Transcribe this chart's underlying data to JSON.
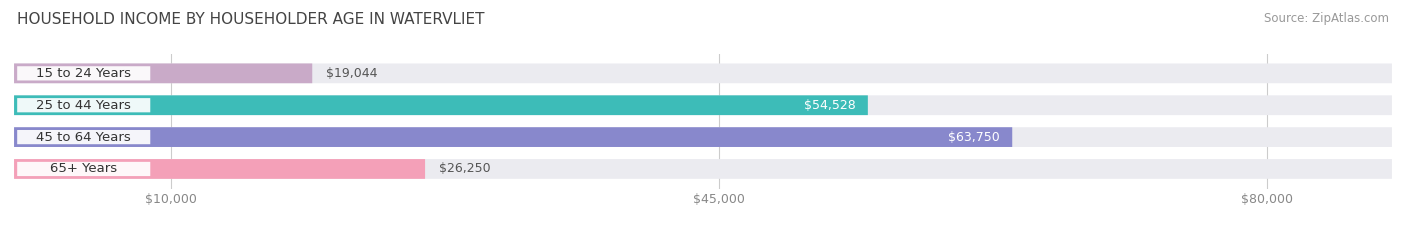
{
  "title": "HOUSEHOLD INCOME BY HOUSEHOLDER AGE IN WATERVLIET",
  "source": "Source: ZipAtlas.com",
  "categories": [
    "15 to 24 Years",
    "25 to 44 Years",
    "45 to 64 Years",
    "65+ Years"
  ],
  "values": [
    19044,
    54528,
    63750,
    26250
  ],
  "bar_colors": [
    "#c9aac8",
    "#3dbcb8",
    "#8888cc",
    "#f4a0b8"
  ],
  "bar_labels": [
    "$19,044",
    "$54,528",
    "$63,750",
    "$26,250"
  ],
  "label_inside": [
    false,
    true,
    true,
    false
  ],
  "x_ticks": [
    10000,
    45000,
    80000
  ],
  "x_tick_labels": [
    "$10,000",
    "$45,000",
    "$80,000"
  ],
  "xlim": [
    0,
    88000
  ],
  "background_color": "#ffffff",
  "bar_bg_color": "#ebebf0",
  "title_fontsize": 11,
  "source_fontsize": 8.5,
  "label_fontsize": 9,
  "cat_fontsize": 9.5,
  "tick_fontsize": 9
}
